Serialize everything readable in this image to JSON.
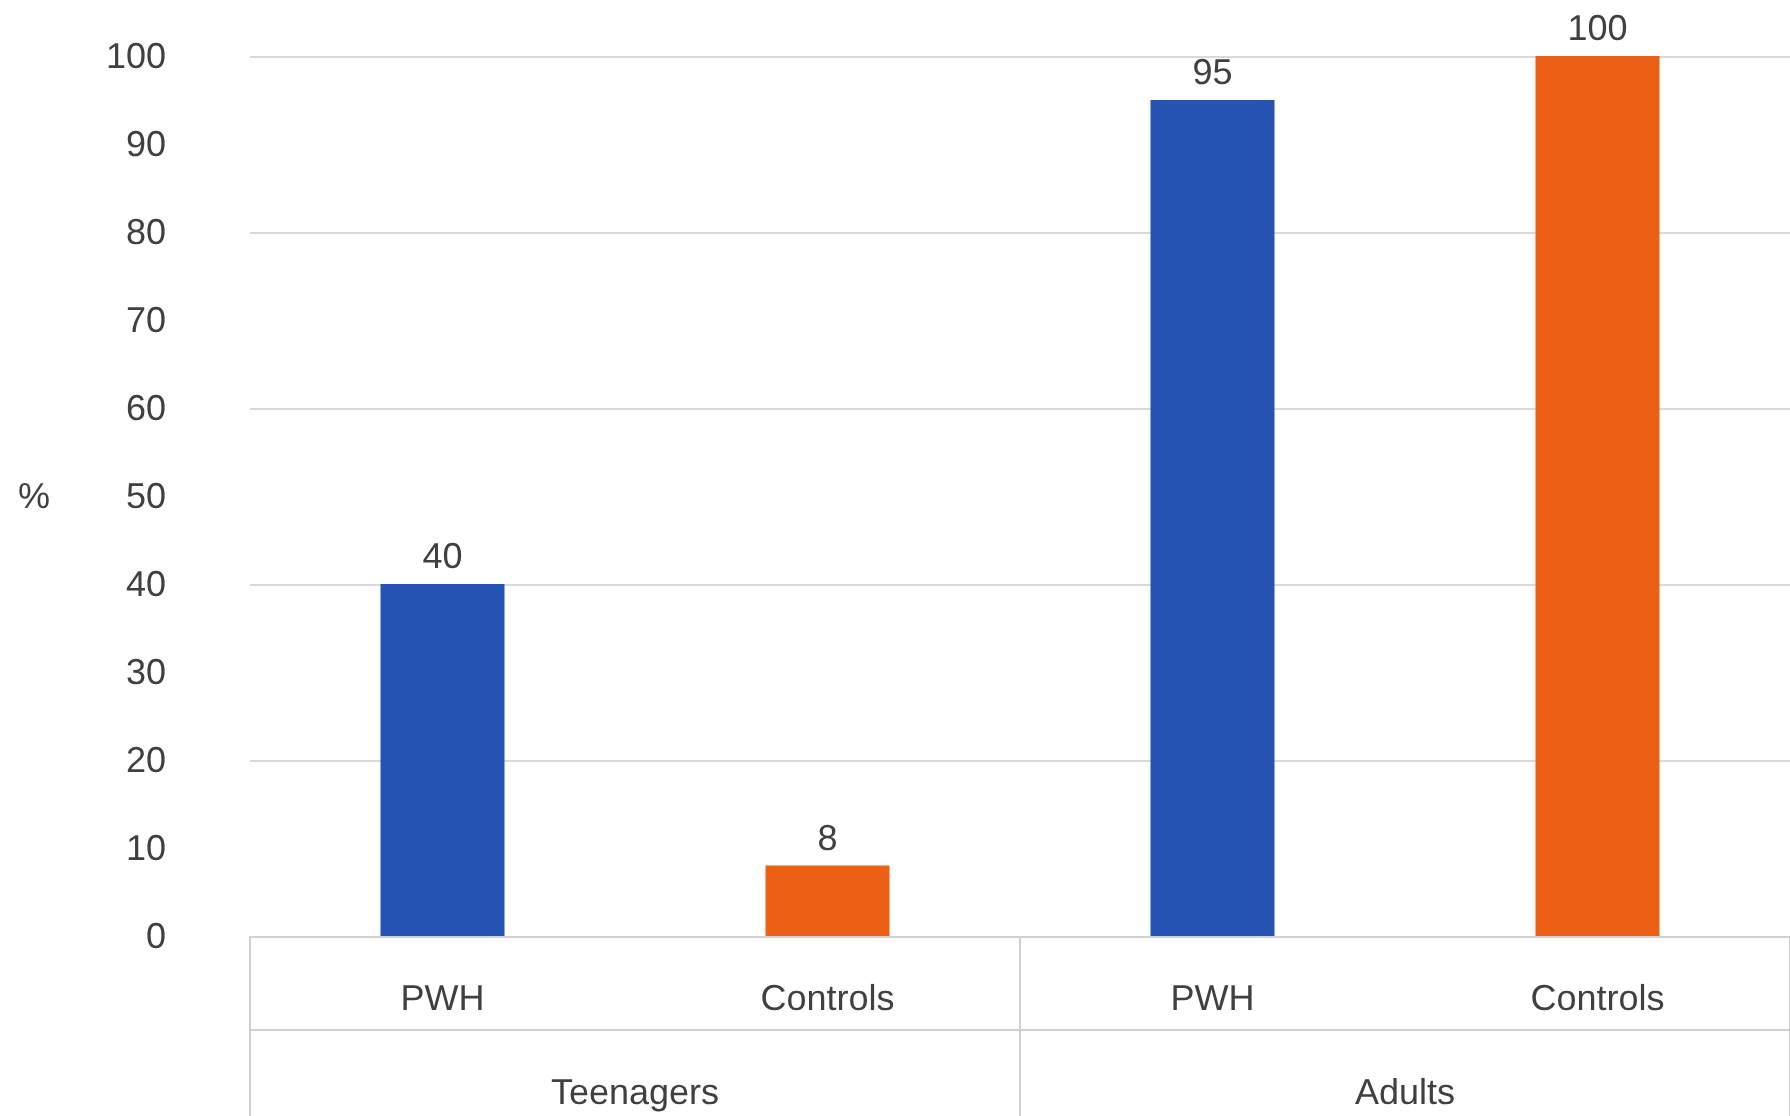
{
  "chart_data": {
    "type": "bar",
    "ylabel": "%",
    "categories": [
      "PWH",
      "Controls",
      "PWH",
      "Controls"
    ],
    "values": [
      40,
      8,
      95,
      100
    ],
    "colors": [
      "#2453b4",
      "#ec6015",
      "#2453b4",
      "#ec6015"
    ],
    "ylim": [
      0,
      100
    ],
    "yticks": [
      0,
      10,
      20,
      30,
      40,
      50,
      60,
      70,
      80,
      90,
      100
    ],
    "grid": "y",
    "data_labels": true,
    "annotations": [
      "Teenagers",
      "Adults"
    ]
  }
}
